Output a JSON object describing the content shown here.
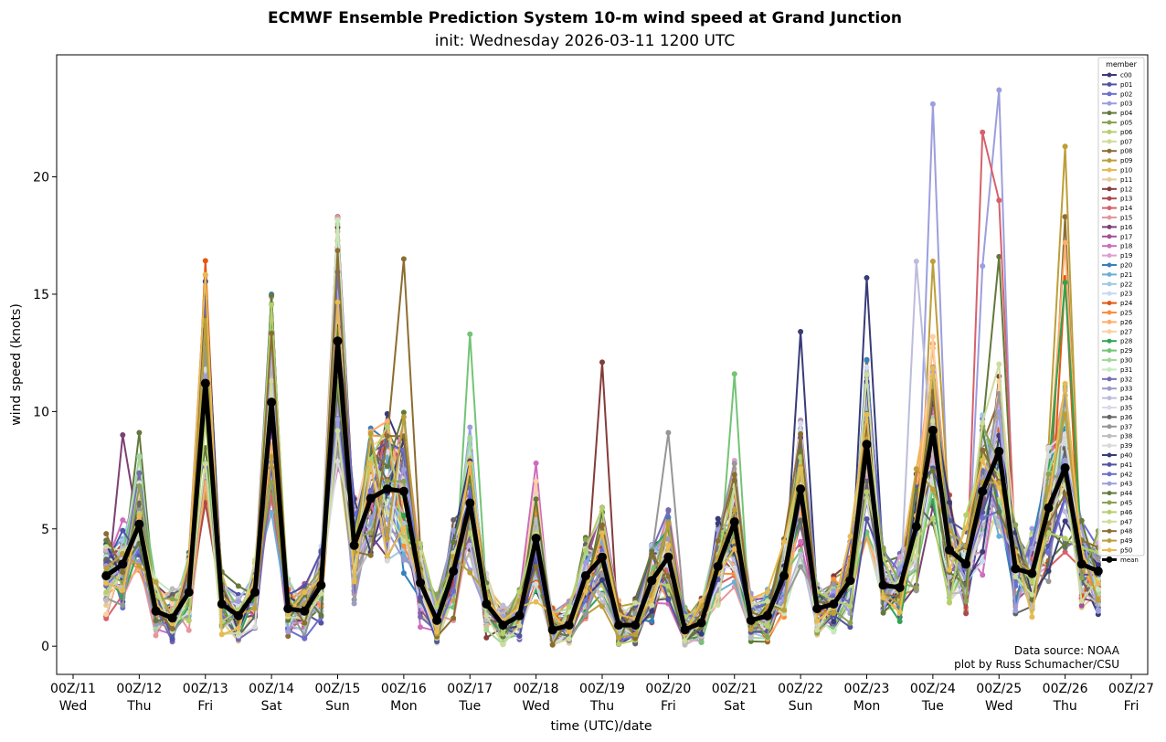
{
  "chart_data": {
    "type": "line",
    "title": "ECMWF Ensemble Prediction System 10-m wind speed at Grand Junction",
    "subtitle": "init: Wednesday 2026-03-11 1200 UTC",
    "xlabel": "time (UTC)/date",
    "ylabel": "wind speed (knots)",
    "ylim": [
      -1.2,
      25.2
    ],
    "xlim": [
      0,
      16
    ],
    "x_unit": "days since 2026-03-11 00Z",
    "yticks": [
      0,
      5,
      10,
      15,
      20
    ],
    "xticks": [
      {
        "value": 0,
        "line1": "00Z/11",
        "line2": "Wed"
      },
      {
        "value": 1,
        "line1": "00Z/12",
        "line2": "Thu"
      },
      {
        "value": 2,
        "line1": "00Z/13",
        "line2": "Fri"
      },
      {
        "value": 3,
        "line1": "00Z/14",
        "line2": "Sat"
      },
      {
        "value": 4,
        "line1": "00Z/15",
        "line2": "Sun"
      },
      {
        "value": 5,
        "line1": "00Z/16",
        "line2": "Mon"
      },
      {
        "value": 6,
        "line1": "00Z/17",
        "line2": "Tue"
      },
      {
        "value": 7,
        "line1": "00Z/18",
        "line2": "Wed"
      },
      {
        "value": 8,
        "line1": "00Z/19",
        "line2": "Thu"
      },
      {
        "value": 9,
        "line1": "00Z/20",
        "line2": "Fri"
      },
      {
        "value": 10,
        "line1": "00Z/21",
        "line2": "Sat"
      },
      {
        "value": 11,
        "line1": "00Z/22",
        "line2": "Sun"
      },
      {
        "value": 12,
        "line1": "00Z/23",
        "line2": "Mon"
      },
      {
        "value": 13,
        "line1": "00Z/24",
        "line2": "Tue"
      },
      {
        "value": 14,
        "line1": "00Z/25",
        "line2": "Wed"
      },
      {
        "value": 15,
        "line1": "00Z/26",
        "line2": "Thu"
      },
      {
        "value": 16,
        "line1": "00Z/27",
        "line2": "Fri"
      }
    ],
    "x": [
      0.5,
      0.75,
      1.0,
      1.25,
      1.5,
      1.75,
      2.0,
      2.25,
      2.5,
      2.75,
      3.0,
      3.25,
      3.5,
      3.75,
      4.0,
      4.25,
      4.5,
      4.75,
      5.0,
      5.25,
      5.5,
      5.75,
      6.0,
      6.25,
      6.5,
      6.75,
      7.0,
      7.25,
      7.5,
      7.75,
      8.0,
      8.25,
      8.5,
      8.75,
      9.0,
      9.25,
      9.5,
      9.75,
      10.0,
      10.25,
      10.5,
      10.75,
      11.0,
      11.25,
      11.5,
      11.75,
      12.0,
      12.25,
      12.5,
      12.75,
      13.0,
      13.25,
      13.5,
      13.75,
      14.0,
      14.25,
      14.5,
      14.75,
      15.0,
      15.25,
      15.5
    ],
    "mean": [
      3.0,
      3.5,
      5.2,
      1.5,
      1.2,
      2.3,
      11.2,
      1.8,
      1.3,
      2.3,
      10.4,
      1.6,
      1.5,
      2.6,
      13.0,
      4.3,
      6.3,
      6.7,
      6.6,
      2.7,
      1.1,
      3.2,
      6.1,
      1.8,
      0.9,
      1.3,
      4.6,
      0.7,
      0.9,
      3.0,
      3.8,
      0.9,
      0.9,
      2.8,
      3.8,
      0.7,
      1.0,
      3.4,
      5.3,
      1.1,
      1.3,
      3.0,
      6.7,
      1.6,
      1.8,
      2.8,
      8.6,
      2.6,
      2.5,
      5.1,
      9.2,
      4.1,
      3.5,
      6.6,
      8.3,
      3.3,
      3.1,
      5.9,
      7.6,
      3.5,
      3.2
    ],
    "members": [
      "c00",
      "p01",
      "p02",
      "p03",
      "p04",
      "p05",
      "p06",
      "p07",
      "p08",
      "p09",
      "p10",
      "p11",
      "p12",
      "p13",
      "p14",
      "p15",
      "p16",
      "p17",
      "p18",
      "p19",
      "p20",
      "p21",
      "p22",
      "p23",
      "p24",
      "p25",
      "p26",
      "p27",
      "p28",
      "p29",
      "p30",
      "p31",
      "p32",
      "p33",
      "p34",
      "p35",
      "p36",
      "p37",
      "p38",
      "p39",
      "p40",
      "p41",
      "p42",
      "p43",
      "p44",
      "p45",
      "p46",
      "p47",
      "p48",
      "p49",
      "p50"
    ],
    "member_colors": [
      "#393b79",
      "#5254a3",
      "#6b6ecf",
      "#9c9ede",
      "#637939",
      "#8ca252",
      "#b5cf6b",
      "#cedb9c",
      "#8c6d31",
      "#bd9e39",
      "#e7ba52",
      "#e7cb94",
      "#843c39",
      "#ad494a",
      "#d6616b",
      "#e7969c",
      "#7b4173",
      "#a55194",
      "#ce6dbd",
      "#de9ed6",
      "#3182bd",
      "#6baed6",
      "#9ecae1",
      "#c6dbef",
      "#e6550d",
      "#fd8d3c",
      "#fdae6b",
      "#fdd0a2",
      "#31a354",
      "#74c476",
      "#a1d99b",
      "#c7e9c0",
      "#756bb1",
      "#9e9ac8",
      "#bcbddc",
      "#dadaeb",
      "#636363",
      "#969696",
      "#bdbdbd",
      "#d9d9d9",
      "#393b79",
      "#5254a3",
      "#6b6ecf",
      "#9c9ede",
      "#637939",
      "#8ca252",
      "#b5cf6b",
      "#cedb9c",
      "#8c6d31",
      "#bd9e39",
      "#e7ba52"
    ],
    "member_peaks": {
      "c00": [
        [
          4.0,
          18.3
        ],
        [
          12.0,
          15.7
        ],
        [
          11.0,
          13.4
        ]
      ],
      "p01": [
        [
          3.0,
          14.9
        ]
      ],
      "p03": [
        [
          13.0,
          23.1
        ],
        [
          14.0,
          23.7
        ],
        [
          13.75,
          16.2
        ]
      ],
      "p04": [
        [
          1.0,
          9.1
        ],
        [
          14.0,
          16.6
        ]
      ],
      "p06": [
        [
          2.0,
          14.5
        ],
        [
          3.0,
          14.6
        ]
      ],
      "p08": [
        [
          5.0,
          16.5
        ],
        [
          15.0,
          18.3
        ]
      ],
      "p09": [
        [
          15.0,
          21.3
        ],
        [
          13.0,
          16.4
        ]
      ],
      "p12": [
        [
          8.0,
          12.1
        ]
      ],
      "p14": [
        [
          13.75,
          21.9
        ],
        [
          14.0,
          19.0
        ]
      ],
      "p16": [
        [
          0.75,
          9.0
        ]
      ],
      "p18": [
        [
          7.0,
          7.8
        ]
      ],
      "p21": [
        [
          2.0,
          13.9
        ]
      ],
      "p24": [
        [
          15.0,
          15.7
        ]
      ],
      "p26": [
        [
          15.0,
          17.2
        ]
      ],
      "p28": [
        [
          15.0,
          15.5
        ],
        [
          3.0,
          13.6
        ]
      ],
      "p29": [
        [
          10.0,
          11.6
        ],
        [
          6.0,
          13.3
        ]
      ],
      "p34": [
        [
          12.75,
          16.4
        ]
      ],
      "p37": [
        [
          9.0,
          9.1
        ]
      ]
    },
    "legend": {
      "title": "member",
      "position": "top-right",
      "entries": [
        "c00",
        "p01",
        "p02",
        "p03",
        "p04",
        "p05",
        "p06",
        "p07",
        "p08",
        "p09",
        "p10",
        "p11",
        "p12",
        "p13",
        "p14",
        "p15",
        "p16",
        "p17",
        "p18",
        "p19",
        "p20",
        "p21",
        "p22",
        "p23",
        "p24",
        "p25",
        "p26",
        "p27",
        "p28",
        "p29",
        "p30",
        "p31",
        "p32",
        "p33",
        "p34",
        "p35",
        "p36",
        "p37",
        "p38",
        "p39",
        "p40",
        "p41",
        "p42",
        "p43",
        "p44",
        "p45",
        "p46",
        "p47",
        "p48",
        "p49",
        "p50",
        "mean"
      ]
    },
    "annotations": [
      "Data source: NOAA",
      "plot by Russ Schumacher/CSU"
    ]
  }
}
